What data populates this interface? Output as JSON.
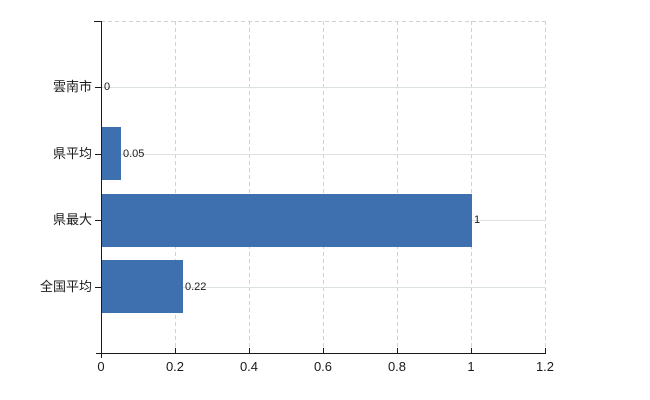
{
  "chart_data": {
    "type": "bar",
    "orientation": "horizontal",
    "title": "",
    "xlabel": "",
    "ylabel": "",
    "categories": [
      "雲南市",
      "県平均",
      "県最大",
      "全国平均"
    ],
    "values": [
      0,
      0.05,
      1,
      0.22
    ],
    "value_labels": [
      "0",
      "0.05",
      "1",
      "0.22"
    ],
    "xlim": [
      0,
      1.2
    ],
    "xticks": [
      0,
      0.2,
      0.4,
      0.6,
      0.8,
      1,
      1.2
    ],
    "xtick_labels": [
      "0",
      "0.2",
      "0.4",
      "0.6",
      "0.8",
      "1",
      "1.2"
    ],
    "grid": true,
    "legend": false,
    "colors": {
      "bar": "#3e6fae",
      "axis": "#1a1a1a",
      "horizontal_grid": "#dce3dc",
      "vertical_grid": "#d7ced4",
      "text": "#1a1a1a",
      "background": "#ffffff"
    }
  }
}
